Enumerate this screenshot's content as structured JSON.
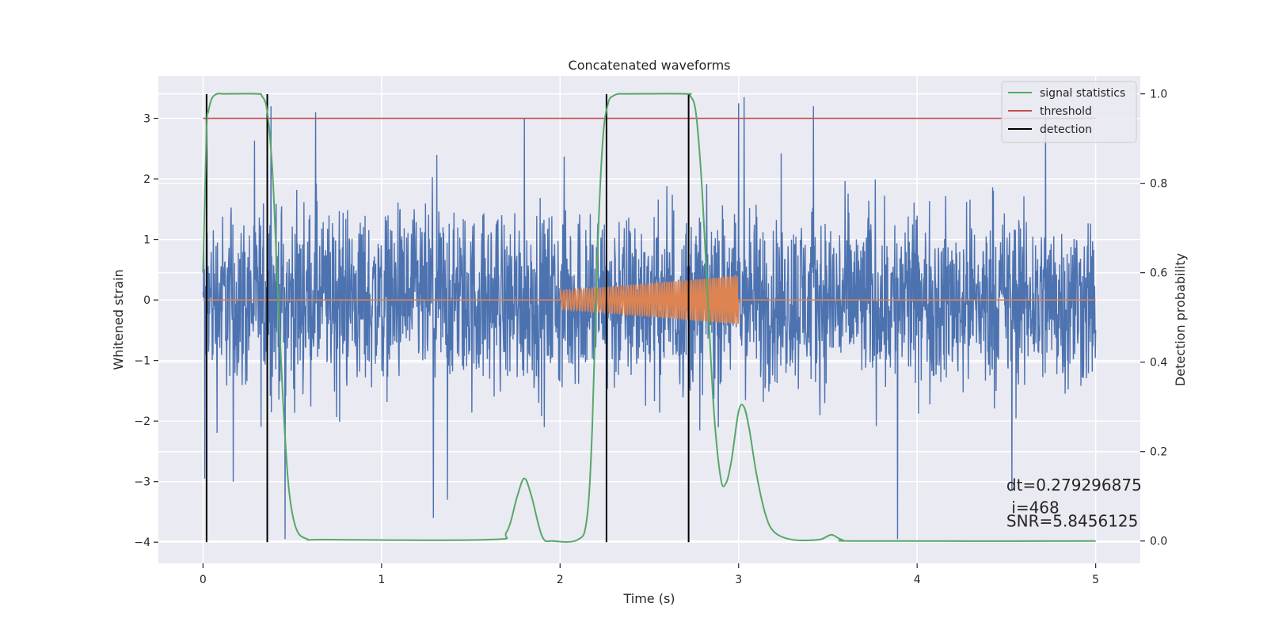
{
  "chart_data": {
    "type": "line",
    "title": "Concatenated waveforms",
    "xlabel": "Time (s)",
    "ylabel": "Whitened strain",
    "y2label": "Detection probability",
    "xlim": [
      -0.25,
      5.25
    ],
    "ylim": [
      -4.35,
      3.7
    ],
    "y2lim": [
      -0.05,
      1.04
    ],
    "x_ticks": [
      0,
      1,
      2,
      3,
      4,
      5
    ],
    "x_tick_labels": [
      "0",
      "1",
      "2",
      "3",
      "4",
      "5"
    ],
    "y_ticks": [
      -4,
      -3,
      -2,
      -1,
      0,
      1,
      2,
      3
    ],
    "y_tick_labels": [
      "−4",
      "−3",
      "−2",
      "−1",
      "0",
      "1",
      "2",
      "3"
    ],
    "y2_ticks": [
      0.0,
      0.2,
      0.4,
      0.6,
      0.8,
      1.0
    ],
    "y2_tick_labels": [
      "0.0",
      "0.2",
      "0.4",
      "0.6",
      "0.8",
      "1.0"
    ],
    "grid": true,
    "legend_position": "top-right",
    "legend": [
      {
        "label": "signal statistics",
        "color": "#55a868"
      },
      {
        "label": "threshold",
        "color": "#c44e52"
      },
      {
        "label": "detection",
        "color": "#000000"
      }
    ],
    "colors": {
      "strain": "#4c72b0",
      "injected": "#dd8452",
      "statistics": "#55a868",
      "threshold": "#c44e52",
      "detection": "#000000",
      "axes_bg": "#eaeaf2",
      "grid": "#ffffff"
    },
    "strain": {
      "x_range": [
        0,
        5
      ],
      "typical_range": [
        -2.6,
        2.6
      ],
      "spikes": [
        {
          "x": 0.01,
          "y": -2.95
        },
        {
          "x": 0.17,
          "y": -3.0
        },
        {
          "x": 0.38,
          "y": 3.2
        },
        {
          "x": 0.46,
          "y": 3.15
        },
        {
          "x": 0.46,
          "y": -3.95
        },
        {
          "x": 0.63,
          "y": 3.1
        },
        {
          "x": 1.29,
          "y": -3.6
        },
        {
          "x": 1.37,
          "y": -3.3
        },
        {
          "x": 1.8,
          "y": 3.0
        },
        {
          "x": 3.03,
          "y": 3.35
        },
        {
          "x": 3.0,
          "y": 3.25
        },
        {
          "x": 3.89,
          "y": -3.95
        },
        {
          "x": 3.42,
          "y": 3.2
        },
        {
          "x": 4.53,
          "y": -3.15
        },
        {
          "x": 4.72,
          "y": 3.15
        }
      ]
    },
    "injected_waveform": {
      "start": 2.0,
      "end": 3.0,
      "amplitude_start": 0.15,
      "amplitude_end": 0.4,
      "cycles": 60
    },
    "threshold": {
      "x": [
        0,
        5
      ],
      "y": 3.0
    },
    "detections": [
      0.02,
      0.36,
      2.26,
      2.72
    ],
    "detection_y_range": [
      -4.0,
      3.4
    ],
    "signal_statistics": {
      "x": [
        0,
        0.02,
        0.03,
        0.05,
        0.08,
        0.12,
        0.3,
        0.33,
        0.36,
        0.39,
        0.42,
        0.45,
        0.48,
        0.52,
        0.58,
        0.7,
        1.6,
        1.7,
        1.76,
        1.8,
        1.84,
        1.9,
        1.96,
        2.1,
        2.15,
        2.18,
        2.21,
        2.24,
        2.27,
        2.3,
        2.33,
        2.38,
        2.7,
        2.73,
        2.76,
        2.79,
        2.82,
        2.86,
        2.9,
        2.93,
        2.96,
        3.0,
        3.03,
        3.06,
        3.1,
        3.15,
        3.2,
        3.3,
        3.45,
        3.52,
        3.58,
        3.7,
        5.0
      ],
      "y": [
        0.6,
        0.92,
        0.96,
        0.99,
        1.0,
        1.0,
        1.0,
        0.995,
        0.96,
        0.82,
        0.55,
        0.3,
        0.12,
        0.03,
        0.005,
        0.003,
        0.003,
        0.02,
        0.1,
        0.14,
        0.1,
        0.01,
        0.0,
        0.003,
        0.05,
        0.25,
        0.65,
        0.9,
        0.98,
        0.996,
        1.0,
        1.0,
        1.0,
        0.995,
        0.96,
        0.82,
        0.6,
        0.3,
        0.14,
        0.13,
        0.18,
        0.29,
        0.3,
        0.25,
        0.15,
        0.06,
        0.02,
        0.003,
        0.003,
        0.014,
        0.003,
        0.0,
        0.0
      ]
    },
    "annotations": [
      {
        "text": "dt=0.279296875",
        "x": 4.5,
        "y": -3.15
      },
      {
        "text": " i=468",
        "x": 4.5,
        "y": -3.52
      },
      {
        "text": "SNR=5.8456125",
        "x": 4.5,
        "y": -3.74
      }
    ]
  }
}
